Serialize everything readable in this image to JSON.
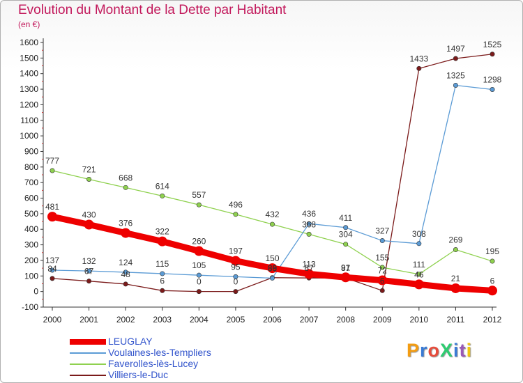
{
  "chart_data": {
    "type": "line",
    "title": "Evolution du Montant de la Dette par Habitant",
    "subtitle": "(en €)",
    "x": [
      "2000",
      "2001",
      "2002",
      "2003",
      "2004",
      "2005",
      "2006",
      "2007",
      "2008",
      "2009",
      "2010",
      "2011",
      "2012"
    ],
    "ylim": [
      -100,
      1600
    ],
    "yticks": [
      -100,
      0,
      100,
      200,
      300,
      400,
      500,
      600,
      700,
      800,
      900,
      1000,
      1100,
      1200,
      1300,
      1400,
      1500,
      1600
    ],
    "grid": false,
    "legend_position": "bottom-left",
    "series": [
      {
        "name": "LEUGLAY",
        "color": "#ee0000",
        "values": [
          481,
          430,
          376,
          322,
          260,
          197,
          150,
          113,
          91,
          72,
          46,
          21,
          6
        ],
        "labels": [
          481,
          430,
          376,
          322,
          260,
          197,
          150,
          113,
          91,
          72,
          46,
          21,
          6
        ]
      },
      {
        "name": "Voulaines-les-Templiers",
        "color": "#5b9bd5",
        "values": [
          137,
          132,
          124,
          115,
          105,
          95,
          86,
          436,
          411,
          327,
          308,
          1325,
          1298
        ],
        "labels": [
          137,
          132,
          124,
          115,
          105,
          95,
          86,
          436,
          411,
          327,
          308,
          1325,
          1298
        ]
      },
      {
        "name": "Faverolles-lès-Lucey",
        "color": "#8fd14f",
        "values": [
          777,
          721,
          668,
          614,
          557,
          496,
          432,
          368,
          304,
          155,
          111,
          269,
          195
        ],
        "labels": [
          777,
          721,
          668,
          614,
          557,
          496,
          432,
          368,
          304,
          155,
          111,
          269,
          195
        ]
      },
      {
        "name": "Villiers-le-Duc",
        "color": "#7b1a1a",
        "values": [
          84,
          67,
          48,
          6,
          0,
          0,
          89,
          87,
          87,
          6,
          1433,
          1497,
          1525
        ],
        "labels": [
          84,
          67,
          48,
          6,
          0,
          0,
          89,
          87,
          87,
          6,
          1433,
          1497,
          1525
        ]
      }
    ]
  },
  "logo": {
    "text": "ProXiti",
    "letter_colors": [
      "#f39c12",
      "#3a7bd5",
      "#e74c3c",
      "#2ecc71",
      "#3a7bd5",
      "#9b59b6",
      "#f1c40f"
    ]
  }
}
